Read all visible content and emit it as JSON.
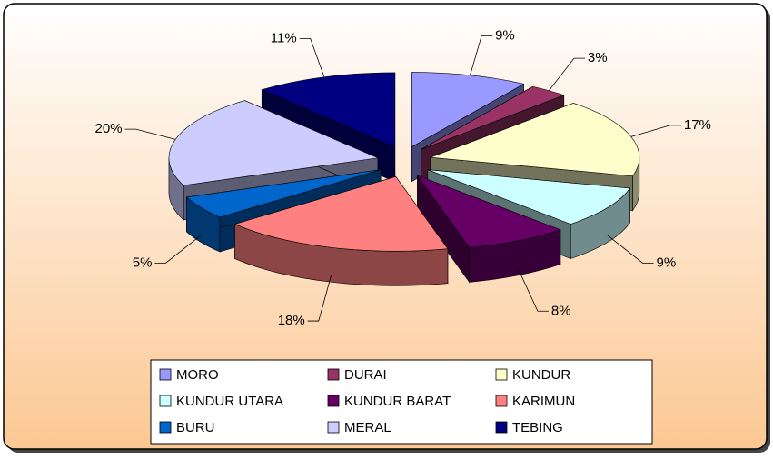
{
  "chart_data": {
    "type": "pie",
    "categories": [
      "MORO",
      "DURAI",
      "KUNDUR",
      "KUNDUR UTARA",
      "KUNDUR BARAT",
      "KARIMUN",
      "BURU",
      "MERAL",
      "TEBING"
    ],
    "values": [
      9,
      3,
      17,
      9,
      8,
      18,
      5,
      20,
      11
    ],
    "value_labels": [
      "9%",
      "3%",
      "17%",
      "9%",
      "8%",
      "18%",
      "5%",
      "20%",
      "11%"
    ],
    "colors": [
      "#9999ff",
      "#993366",
      "#ffffcc",
      "#ccffff",
      "#660066",
      "#ff8080",
      "#0066cc",
      "#ccccff",
      "#000080"
    ],
    "legend": "bottom"
  }
}
